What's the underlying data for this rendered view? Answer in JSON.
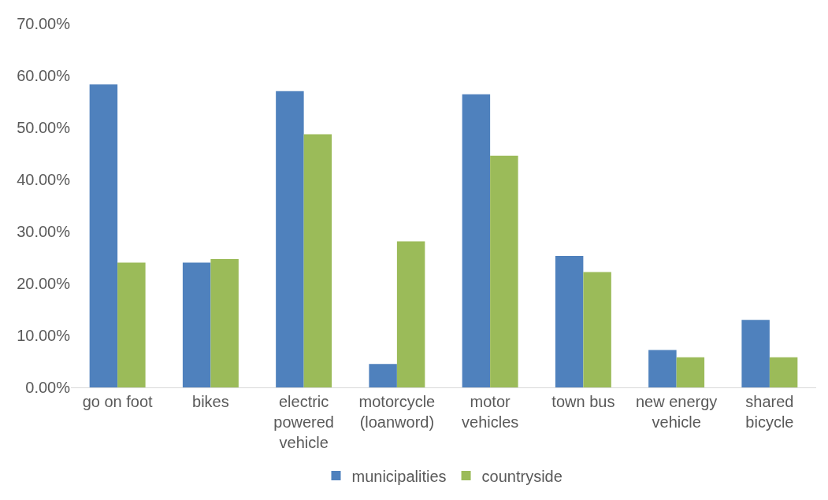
{
  "chart_data": {
    "type": "bar",
    "categories": [
      "go on foot",
      "bikes",
      "electric powered vehicle",
      "motorcycle (loanword)",
      "motor vehicles",
      "town bus",
      "new energy vehicle",
      "shared bicycle"
    ],
    "series": [
      {
        "name": "municipalities",
        "color": "#4f81bd",
        "values": [
          58.3,
          24.0,
          57.0,
          4.5,
          56.4,
          25.3,
          7.2,
          13.0
        ]
      },
      {
        "name": "countryside",
        "color": "#9bbb59",
        "values": [
          24.0,
          24.7,
          48.7,
          28.1,
          44.6,
          22.2,
          5.8,
          5.8
        ]
      }
    ],
    "ylim": [
      0,
      70
    ],
    "yticks": [
      {
        "value": 0,
        "label": "0.00%"
      },
      {
        "value": 10,
        "label": "10.00%"
      },
      {
        "value": 20,
        "label": "20.00%"
      },
      {
        "value": 30,
        "label": "30.00%"
      },
      {
        "value": 40,
        "label": "40.00%"
      },
      {
        "value": 50,
        "label": "50.00%"
      },
      {
        "value": 60,
        "label": "60.00%"
      },
      {
        "value": 70,
        "label": "70.00%"
      }
    ],
    "grid": false,
    "legend": "bottom"
  }
}
